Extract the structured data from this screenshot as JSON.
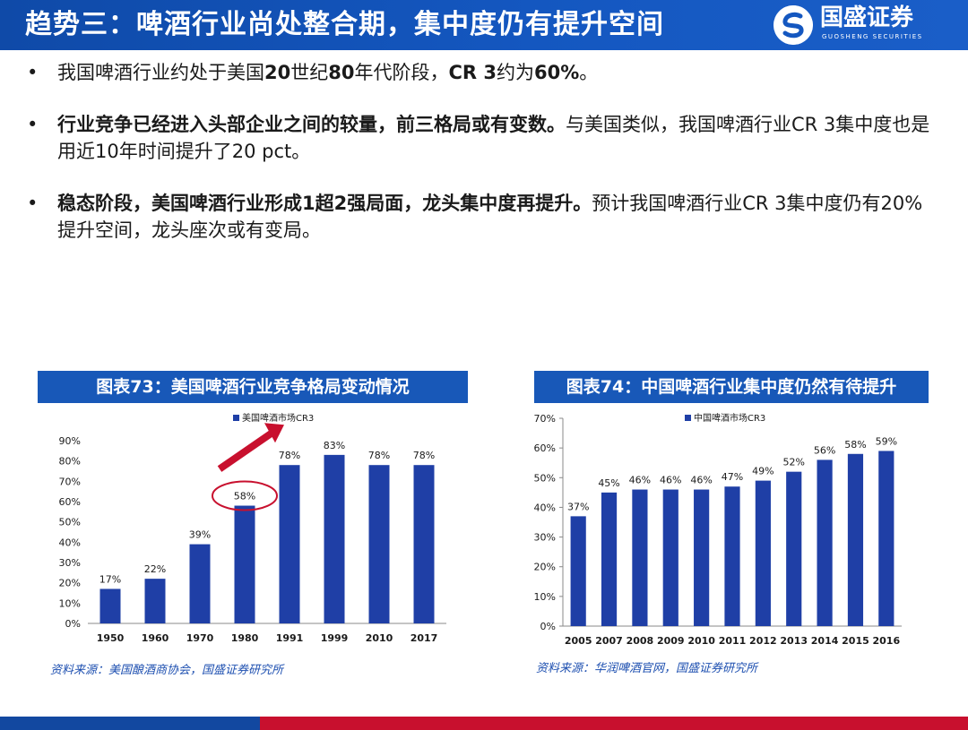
{
  "header": {
    "title": "趋势三：啤酒行业尚处整合期，集中度仍有提升空间",
    "logo_name": "国盛证券",
    "logo_en": "GUOSHENG SECURITIES"
  },
  "bullets": [
    {
      "parts": [
        {
          "text": "我国啤酒行业约处于美国",
          "bold": false
        },
        {
          "text": "20",
          "bold": true
        },
        {
          "text": "世纪",
          "bold": false
        },
        {
          "text": "80",
          "bold": true
        },
        {
          "text": "年代阶段，",
          "bold": false
        },
        {
          "text": "CR 3",
          "bold": true
        },
        {
          "text": "约为",
          "bold": false
        },
        {
          "text": "60%",
          "bold": true
        },
        {
          "text": "。",
          "bold": false
        }
      ]
    },
    {
      "parts": [
        {
          "text": "行业竞争已经进入头部企业之间的较量，前三格局或有变数。",
          "bold": true
        },
        {
          "text": "与美国类似，我国啤酒行业CR 3集中度也是用近10年时间提升了20 pct。",
          "bold": false
        }
      ]
    },
    {
      "parts": [
        {
          "text": "稳态阶段，美国啤酒行业形成",
          "bold": true
        },
        {
          "text": "1",
          "bold": true
        },
        {
          "text": "超",
          "bold": true
        },
        {
          "text": "2",
          "bold": true
        },
        {
          "text": "强局面，龙头集中度再提升。",
          "bold": true
        },
        {
          "text": "预计我国啤酒行业CR 3集中度仍有20%提升空间，龙头座次或有变局。",
          "bold": false
        }
      ]
    }
  ],
  "charts": {
    "left": {
      "header": "图表73：美国啤酒行业竞争格局变动情况",
      "source": "资料来源：美国酿酒商协会，国盛证券研究所"
    },
    "right": {
      "header": "图表74：中国啤酒行业集中度仍然有待提升",
      "source": "资料来源：华润啤酒官网，国盛证券研究所"
    }
  },
  "chart_data": [
    {
      "type": "bar",
      "categories": [
        "1950",
        "1960",
        "1970",
        "1980",
        "1991",
        "1999",
        "2010",
        "2017"
      ],
      "series": [
        {
          "name": "美国啤酒市场CR3",
          "values": [
            17,
            22,
            39,
            58,
            78,
            83,
            78,
            78
          ]
        }
      ],
      "data_labels": [
        "17%",
        "22%",
        "39%",
        "58%",
        "78%",
        "83%",
        "78%",
        "78%"
      ],
      "ylim": [
        0,
        90
      ],
      "yticks": [
        "0%",
        "10%",
        "20%",
        "30%",
        "40%",
        "50%",
        "60%",
        "70%",
        "80%",
        "90%"
      ],
      "legend_position": "top-center",
      "highlight_category": "1980",
      "bar_color": "#1f3fa6",
      "annotation_color": "#c8102e"
    },
    {
      "type": "bar",
      "categories": [
        "2005",
        "2007",
        "2008",
        "2009",
        "2010",
        "2011",
        "2012",
        "2013",
        "2014",
        "2015",
        "2016"
      ],
      "series": [
        {
          "name": "中国啤酒市场CR3",
          "values": [
            37,
            45,
            46,
            46,
            46,
            47,
            49,
            52,
            56,
            58,
            59
          ]
        }
      ],
      "data_labels": [
        "37%",
        "45%",
        "46%",
        "46%",
        "46%",
        "47%",
        "49%",
        "52%",
        "56%",
        "58%",
        "59%"
      ],
      "ylim": [
        0,
        70
      ],
      "yticks": [
        "0%",
        "10%",
        "20%",
        "30%",
        "40%",
        "50%",
        "60%",
        "70%"
      ],
      "legend_position": "top-center",
      "bar_color": "#1f3fa6"
    }
  ]
}
